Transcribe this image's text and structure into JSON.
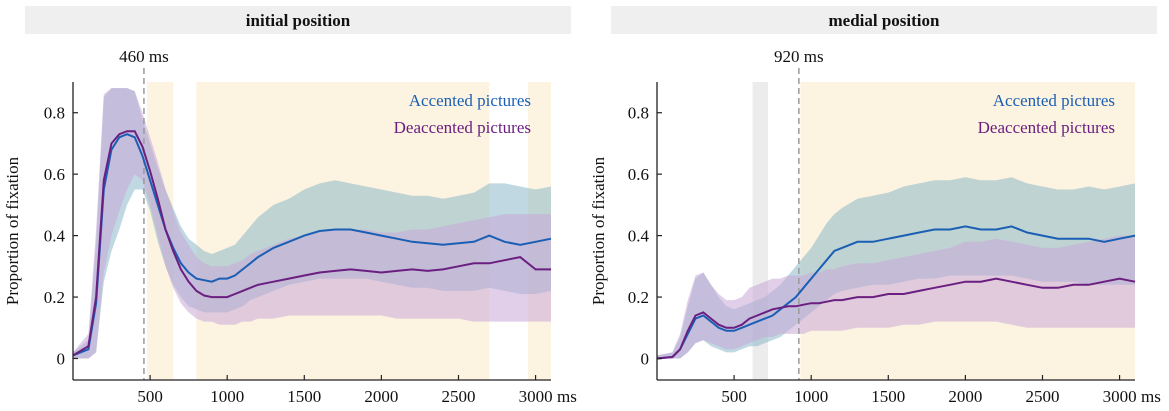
{
  "chart_data": [
    {
      "type": "line",
      "panel_title": "initial position",
      "marker_label": "460 ms",
      "marker_x": 460,
      "xlim": [
        0,
        3100
      ],
      "ylim": [
        -0.07,
        0.9
      ],
      "xticks": [
        500,
        1000,
        1500,
        2000,
        2500,
        3000
      ],
      "x_unit_label": "ms",
      "yticks": [
        0,
        0.2,
        0.4,
        0.6,
        0.8
      ],
      "ytick_labels": [
        "0",
        "0.2",
        "0.4",
        "0.6",
        "0.8"
      ],
      "ylabel": "Proportion of fixation",
      "shaded_regions": [
        [
          480,
          650
        ],
        [
          800,
          2700
        ],
        [
          2950,
          3100
        ]
      ],
      "series": [
        {
          "name": "Accented pictures",
          "color": "#1a5fb4",
          "band_color": "#8cb8c8",
          "x": [
            0,
            100,
            150,
            200,
            250,
            300,
            350,
            400,
            450,
            500,
            550,
            600,
            650,
            700,
            750,
            800,
            850,
            900,
            950,
            1000,
            1050,
            1100,
            1150,
            1200,
            1300,
            1400,
            1500,
            1600,
            1700,
            1800,
            1900,
            2000,
            2100,
            2200,
            2300,
            2400,
            2500,
            2600,
            2700,
            2800,
            2900,
            3000,
            3100
          ],
          "values": [
            0.01,
            0.03,
            0.18,
            0.55,
            0.68,
            0.72,
            0.73,
            0.72,
            0.66,
            0.58,
            0.5,
            0.42,
            0.36,
            0.31,
            0.28,
            0.26,
            0.255,
            0.25,
            0.26,
            0.26,
            0.27,
            0.29,
            0.31,
            0.33,
            0.36,
            0.38,
            0.4,
            0.415,
            0.42,
            0.42,
            0.41,
            0.4,
            0.39,
            0.38,
            0.375,
            0.37,
            0.375,
            0.38,
            0.4,
            0.38,
            0.37,
            0.38,
            0.39
          ],
          "lower": [
            0,
            0,
            0.02,
            0.25,
            0.35,
            0.42,
            0.5,
            0.55,
            0.55,
            0.48,
            0.38,
            0.3,
            0.24,
            0.2,
            0.17,
            0.16,
            0.15,
            0.15,
            0.15,
            0.15,
            0.16,
            0.17,
            0.19,
            0.2,
            0.22,
            0.24,
            0.25,
            0.26,
            0.26,
            0.26,
            0.26,
            0.25,
            0.24,
            0.23,
            0.23,
            0.22,
            0.22,
            0.22,
            0.23,
            0.22,
            0.21,
            0.21,
            0.22
          ],
          "upper": [
            0.02,
            0.06,
            0.38,
            0.85,
            0.88,
            0.88,
            0.88,
            0.87,
            0.78,
            0.7,
            0.62,
            0.55,
            0.49,
            0.43,
            0.39,
            0.37,
            0.35,
            0.34,
            0.35,
            0.36,
            0.37,
            0.4,
            0.43,
            0.46,
            0.5,
            0.52,
            0.55,
            0.57,
            0.58,
            0.57,
            0.56,
            0.55,
            0.54,
            0.53,
            0.53,
            0.52,
            0.53,
            0.54,
            0.57,
            0.57,
            0.56,
            0.55,
            0.56
          ]
        },
        {
          "name": "Deaccented pictures",
          "color": "#6b1f80",
          "band_color": "#c8a8d8",
          "x": [
            0,
            100,
            150,
            200,
            250,
            300,
            350,
            400,
            450,
            500,
            550,
            600,
            650,
            700,
            750,
            800,
            850,
            900,
            950,
            1000,
            1050,
            1100,
            1150,
            1200,
            1300,
            1400,
            1500,
            1600,
            1700,
            1800,
            1900,
            2000,
            2100,
            2200,
            2300,
            2400,
            2500,
            2600,
            2700,
            2800,
            2900,
            3000,
            3100
          ],
          "values": [
            0.01,
            0.04,
            0.2,
            0.58,
            0.7,
            0.73,
            0.74,
            0.74,
            0.69,
            0.61,
            0.52,
            0.42,
            0.35,
            0.29,
            0.25,
            0.22,
            0.205,
            0.2,
            0.2,
            0.2,
            0.21,
            0.22,
            0.23,
            0.24,
            0.25,
            0.26,
            0.27,
            0.28,
            0.285,
            0.29,
            0.285,
            0.28,
            0.285,
            0.29,
            0.285,
            0.29,
            0.3,
            0.31,
            0.31,
            0.32,
            0.33,
            0.29,
            0.29
          ],
          "lower": [
            0,
            0,
            0.02,
            0.28,
            0.4,
            0.48,
            0.55,
            0.6,
            0.58,
            0.5,
            0.4,
            0.3,
            0.23,
            0.18,
            0.15,
            0.13,
            0.12,
            0.12,
            0.11,
            0.11,
            0.11,
            0.12,
            0.12,
            0.13,
            0.13,
            0.14,
            0.14,
            0.14,
            0.14,
            0.14,
            0.14,
            0.14,
            0.13,
            0.13,
            0.13,
            0.13,
            0.13,
            0.12,
            0.12,
            0.12,
            0.12,
            0.12,
            0.12
          ],
          "upper": [
            0.02,
            0.08,
            0.42,
            0.86,
            0.88,
            0.88,
            0.88,
            0.87,
            0.8,
            0.72,
            0.64,
            0.55,
            0.48,
            0.41,
            0.37,
            0.33,
            0.31,
            0.3,
            0.3,
            0.3,
            0.31,
            0.32,
            0.34,
            0.35,
            0.37,
            0.39,
            0.4,
            0.41,
            0.42,
            0.42,
            0.42,
            0.41,
            0.41,
            0.42,
            0.42,
            0.43,
            0.44,
            0.45,
            0.46,
            0.47,
            0.47,
            0.47,
            0.47
          ]
        }
      ]
    },
    {
      "type": "line",
      "panel_title": "medial position",
      "marker_label": "920 ms",
      "marker_x": 920,
      "xlim": [
        0,
        3100
      ],
      "ylim": [
        -0.07,
        0.9
      ],
      "xticks": [
        500,
        1000,
        1500,
        2000,
        2500,
        3000
      ],
      "x_unit_label": "ms",
      "yticks": [
        0,
        0.2,
        0.4,
        0.6,
        0.8
      ],
      "ytick_labels": [
        "0",
        "0.2",
        "0.4",
        "0.6",
        "0.8"
      ],
      "ylabel": "Proportion of fixation",
      "shaded_regions": [
        [
          930,
          3100
        ]
      ],
      "gray_regions": [
        [
          620,
          720
        ]
      ],
      "series": [
        {
          "name": "Accented pictures",
          "color": "#1a5fb4",
          "band_color": "#8cb8c8",
          "x": [
            0,
            100,
            150,
            200,
            250,
            300,
            350,
            400,
            450,
            500,
            550,
            600,
            650,
            700,
            750,
            800,
            850,
            900,
            950,
            1000,
            1050,
            1100,
            1150,
            1200,
            1300,
            1400,
            1500,
            1600,
            1700,
            1800,
            1900,
            2000,
            2100,
            2200,
            2300,
            2400,
            2500,
            2600,
            2700,
            2800,
            2900,
            3000,
            3100
          ],
          "values": [
            0,
            0.005,
            0.03,
            0.08,
            0.13,
            0.14,
            0.12,
            0.1,
            0.09,
            0.09,
            0.1,
            0.11,
            0.12,
            0.13,
            0.14,
            0.16,
            0.18,
            0.2,
            0.23,
            0.26,
            0.29,
            0.32,
            0.35,
            0.36,
            0.38,
            0.38,
            0.39,
            0.4,
            0.41,
            0.42,
            0.42,
            0.43,
            0.42,
            0.42,
            0.43,
            0.41,
            0.4,
            0.39,
            0.39,
            0.39,
            0.38,
            0.39,
            0.4
          ],
          "lower": [
            0,
            0,
            0,
            0.02,
            0.05,
            0.06,
            0.04,
            0.03,
            0.02,
            0.02,
            0.03,
            0.04,
            0.04,
            0.05,
            0.06,
            0.07,
            0.09,
            0.11,
            0.13,
            0.15,
            0.17,
            0.19,
            0.21,
            0.22,
            0.23,
            0.24,
            0.24,
            0.25,
            0.26,
            0.26,
            0.27,
            0.27,
            0.27,
            0.27,
            0.27,
            0.26,
            0.25,
            0.25,
            0.25,
            0.24,
            0.24,
            0.24,
            0.24
          ],
          "upper": [
            0.01,
            0.02,
            0.07,
            0.17,
            0.26,
            0.28,
            0.24,
            0.2,
            0.17,
            0.16,
            0.17,
            0.18,
            0.19,
            0.2,
            0.22,
            0.24,
            0.27,
            0.3,
            0.33,
            0.36,
            0.4,
            0.44,
            0.47,
            0.49,
            0.52,
            0.53,
            0.54,
            0.56,
            0.57,
            0.58,
            0.58,
            0.59,
            0.58,
            0.58,
            0.59,
            0.57,
            0.56,
            0.55,
            0.55,
            0.56,
            0.55,
            0.56,
            0.57
          ]
        },
        {
          "name": "Deaccented pictures",
          "color": "#6b1f80",
          "band_color": "#c8a8d8",
          "x": [
            0,
            100,
            150,
            200,
            250,
            300,
            350,
            400,
            450,
            500,
            550,
            600,
            650,
            700,
            750,
            800,
            850,
            900,
            950,
            1000,
            1050,
            1100,
            1150,
            1200,
            1300,
            1400,
            1500,
            1600,
            1700,
            1800,
            1900,
            2000,
            2100,
            2200,
            2300,
            2400,
            2500,
            2600,
            2700,
            2800,
            2900,
            3000,
            3100
          ],
          "values": [
            0,
            0.005,
            0.03,
            0.09,
            0.14,
            0.15,
            0.13,
            0.11,
            0.1,
            0.1,
            0.11,
            0.13,
            0.14,
            0.15,
            0.16,
            0.165,
            0.17,
            0.17,
            0.175,
            0.18,
            0.18,
            0.185,
            0.19,
            0.19,
            0.2,
            0.2,
            0.21,
            0.21,
            0.22,
            0.23,
            0.24,
            0.25,
            0.25,
            0.26,
            0.25,
            0.24,
            0.23,
            0.23,
            0.24,
            0.24,
            0.25,
            0.26,
            0.25
          ],
          "lower": [
            0,
            0,
            0,
            0.02,
            0.05,
            0.06,
            0.05,
            0.04,
            0.03,
            0.03,
            0.04,
            0.05,
            0.06,
            0.07,
            0.07,
            0.08,
            0.08,
            0.08,
            0.08,
            0.09,
            0.09,
            0.09,
            0.09,
            0.09,
            0.1,
            0.1,
            0.1,
            0.11,
            0.11,
            0.12,
            0.12,
            0.12,
            0.12,
            0.12,
            0.11,
            0.1,
            0.1,
            0.1,
            0.1,
            0.1,
            0.1,
            0.1,
            0.1
          ],
          "upper": [
            0.01,
            0.02,
            0.08,
            0.19,
            0.27,
            0.28,
            0.24,
            0.21,
            0.19,
            0.19,
            0.2,
            0.23,
            0.24,
            0.25,
            0.26,
            0.26,
            0.27,
            0.27,
            0.27,
            0.28,
            0.28,
            0.29,
            0.29,
            0.3,
            0.31,
            0.31,
            0.32,
            0.33,
            0.34,
            0.35,
            0.36,
            0.38,
            0.38,
            0.39,
            0.38,
            0.37,
            0.36,
            0.36,
            0.37,
            0.38,
            0.39,
            0.4,
            0.4
          ]
        }
      ]
    }
  ]
}
